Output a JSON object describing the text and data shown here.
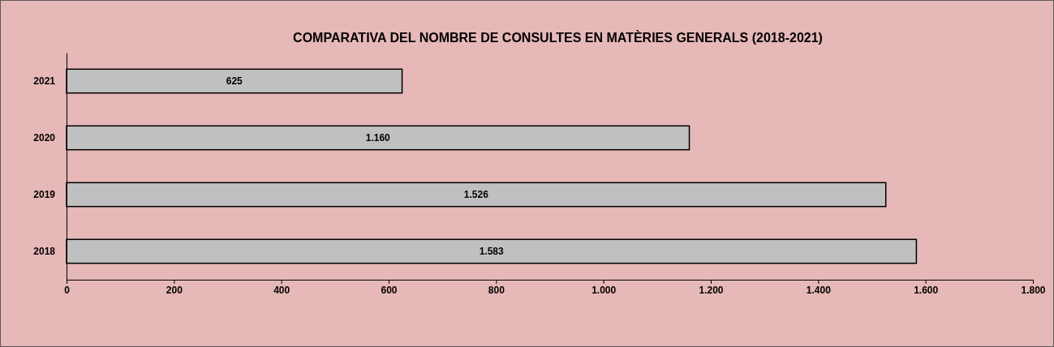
{
  "chart_data": {
    "type": "bar",
    "orientation": "horizontal",
    "title": "COMPARATIVA DEL NOMBRE DE CONSULTES EN MATÈRIES GENERALS (2018-2021)",
    "categories": [
      "2021",
      "2020",
      "2019",
      "2018"
    ],
    "values": [
      625,
      1160,
      1526,
      1583
    ],
    "value_labels": [
      "625",
      "1.160",
      "1.526",
      "1.583"
    ],
    "color": "#c0c0c0",
    "xlim": [
      0,
      1800
    ],
    "xticks": [
      0,
      200,
      400,
      600,
      800,
      {
        "value": 1000,
        "label": "1.000"
      },
      {
        "value": 1200,
        "label": "1.200"
      },
      {
        "value": 1400,
        "label": "1.400"
      },
      {
        "value": 1600,
        "label": "1.600"
      },
      {
        "value": 1800,
        "label": "1.800"
      }
    ],
    "grid": false
  }
}
